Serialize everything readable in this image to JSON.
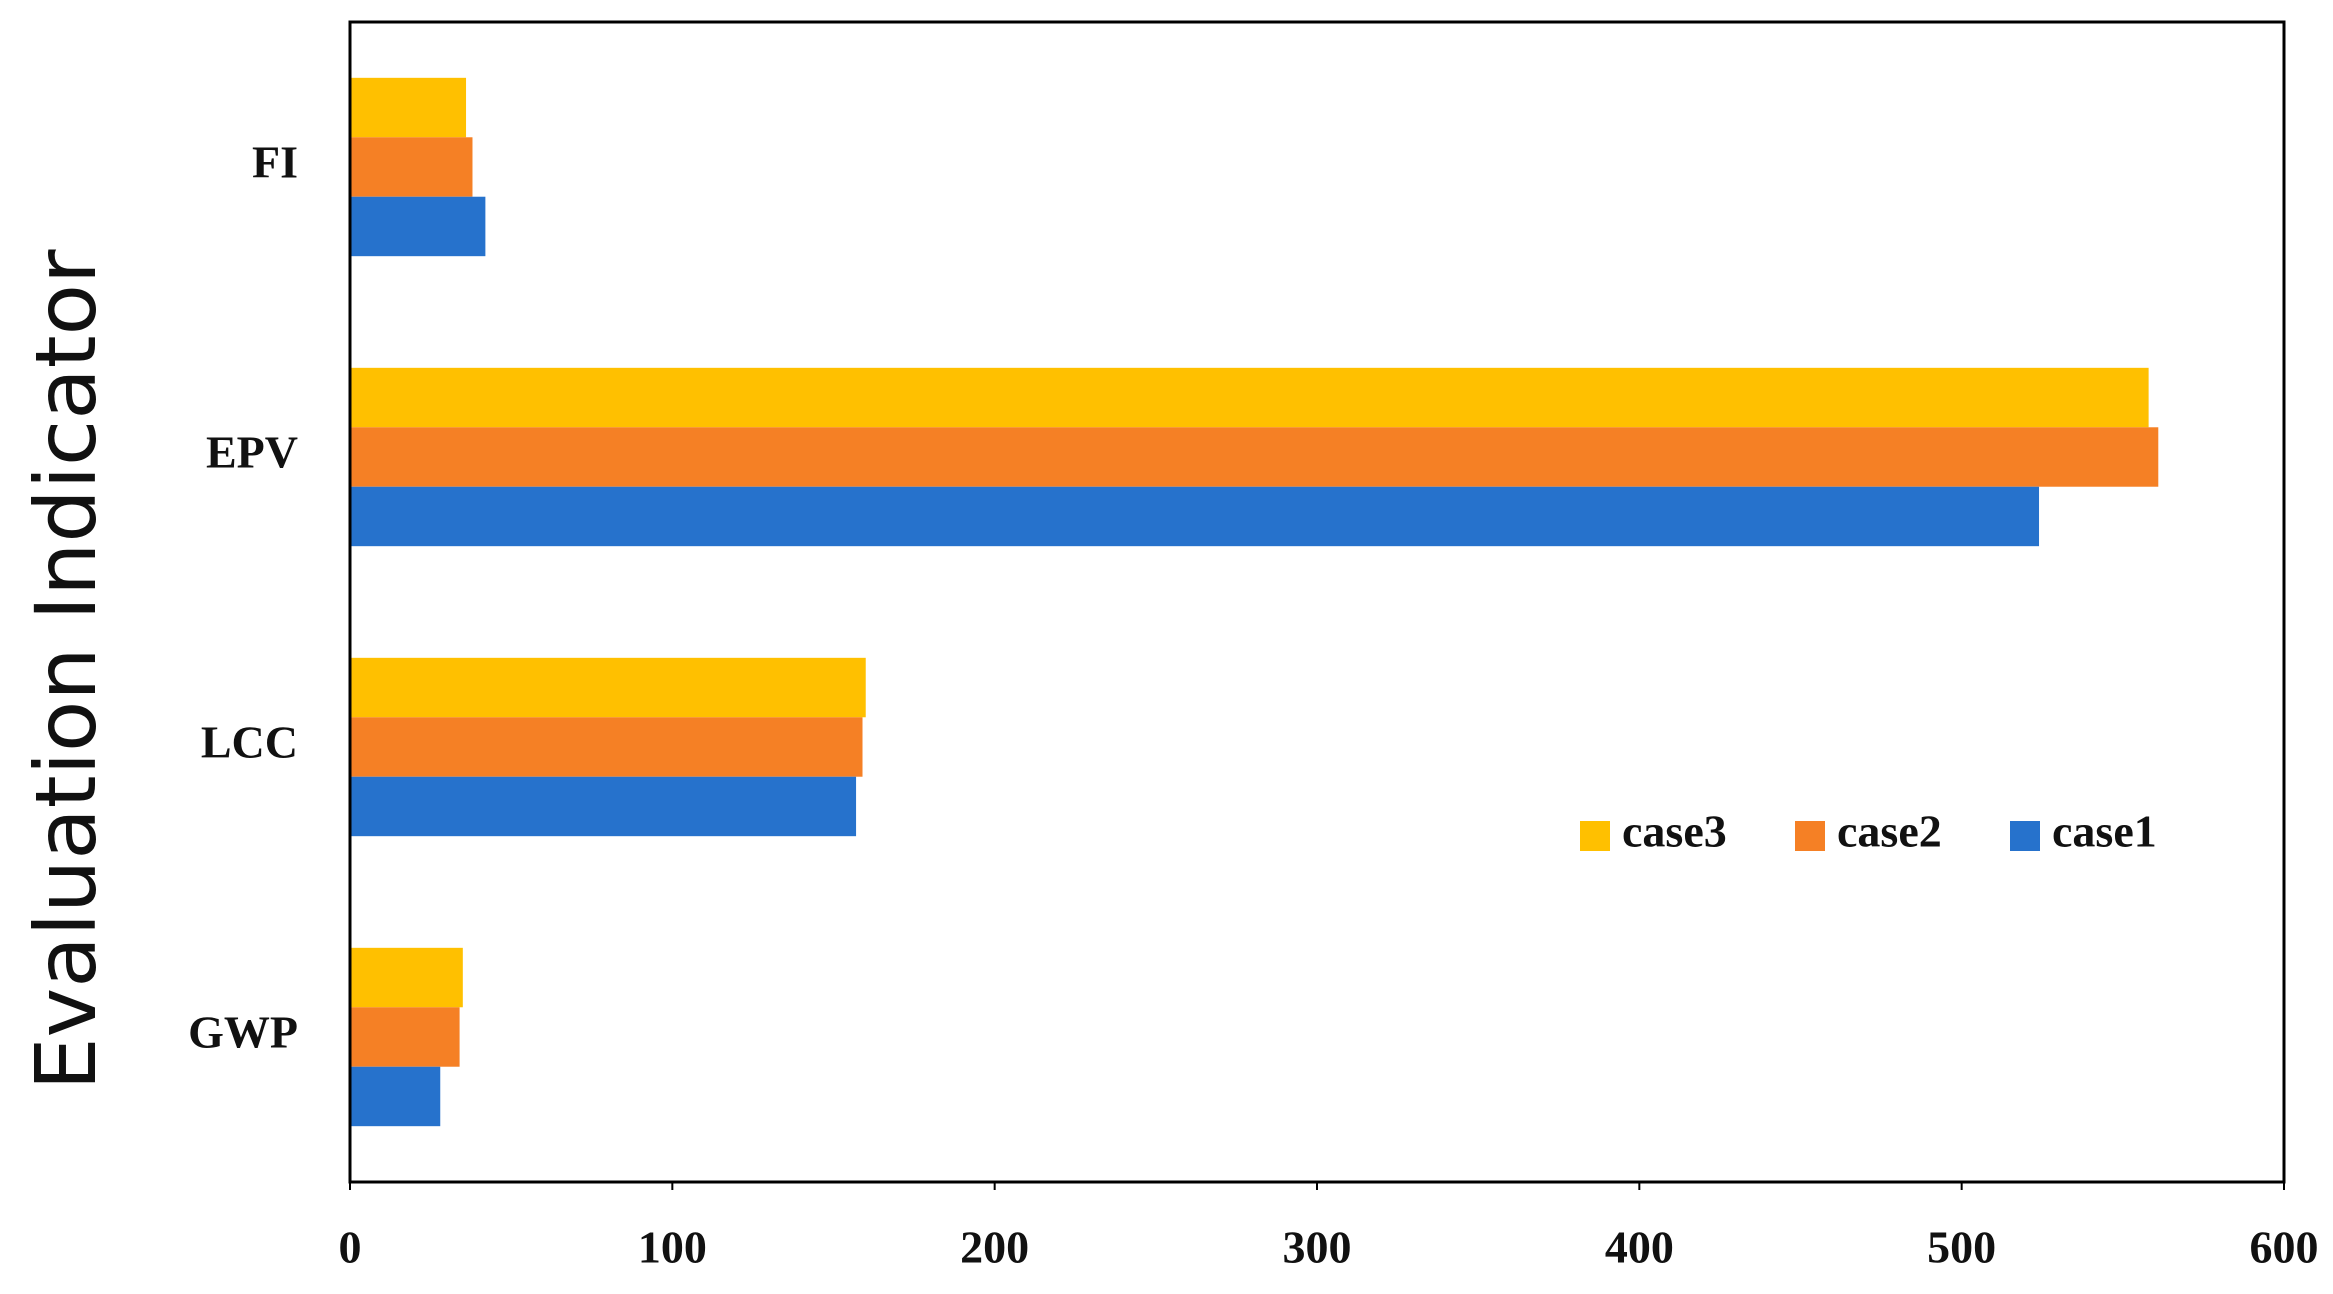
{
  "chart_data": {
    "type": "barh",
    "y_axis_label": "Evaluation Indicator",
    "categories": [
      "FI",
      "EPV",
      "LCC",
      "GWP"
    ],
    "series": [
      {
        "name": "case3",
        "color": "#FFC000",
        "values": [
          36,
          558,
          160,
          35
        ]
      },
      {
        "name": "case2",
        "color": "#F58025",
        "values": [
          38,
          561,
          159,
          34
        ]
      },
      {
        "name": "case1",
        "color": "#2672CC",
        "values": [
          42,
          524,
          157,
          28
        ]
      }
    ],
    "xlim": [
      0,
      600
    ],
    "xticks": [
      0,
      100,
      200,
      300,
      400,
      500,
      600
    ],
    "grid": false,
    "legend": "right"
  }
}
